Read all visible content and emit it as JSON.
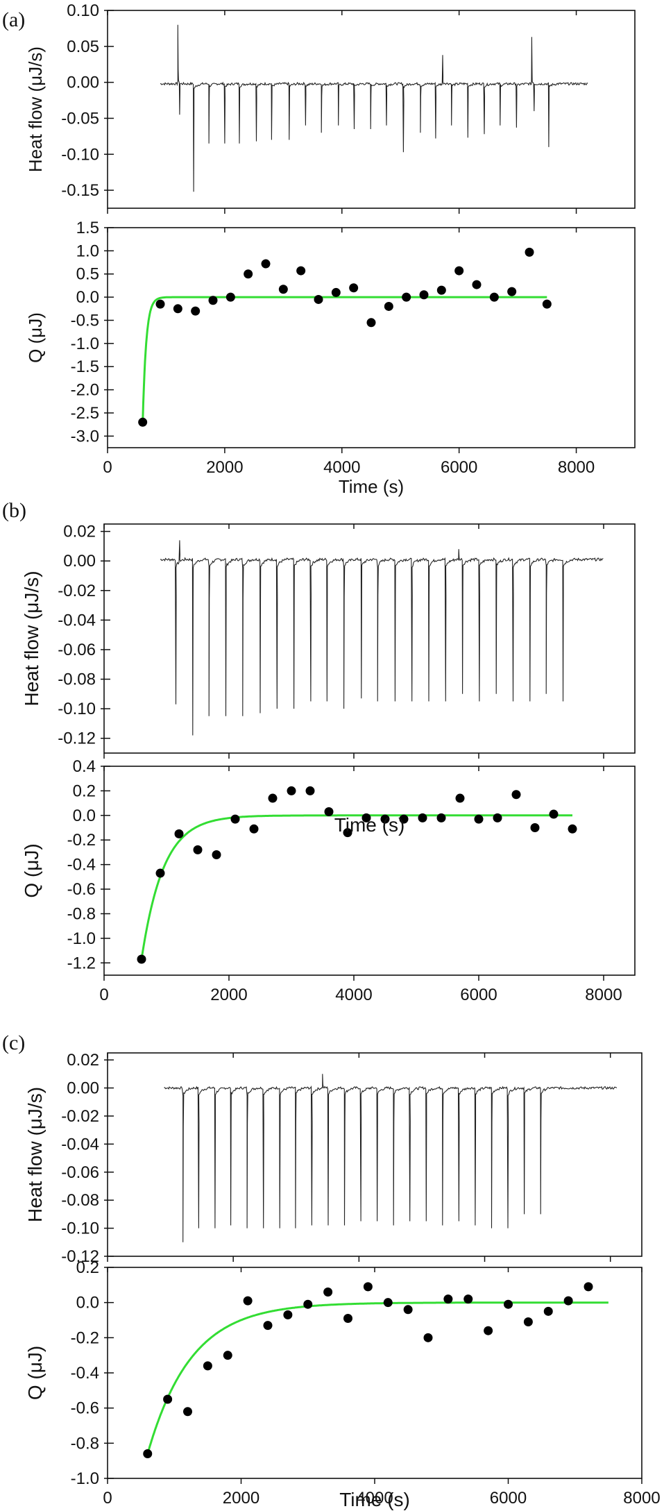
{
  "chart_data": [
    {
      "panel": "(a)",
      "type": "line",
      "ylabel": "Heat flow (μJ/s)",
      "xlim": [
        0,
        9000
      ],
      "ylim": [
        -0.175,
        0.1
      ],
      "yticks": [
        0.1,
        0.05,
        0.0,
        -0.05,
        -0.1,
        -0.15
      ],
      "ytick_labels": [
        "0.10",
        "0.05",
        "0.00",
        "-0.05",
        "-0.10",
        "-0.15"
      ],
      "xticks": [
        0,
        2000,
        4000,
        6000,
        8000
      ],
      "x_tick_labels_shown": false,
      "series": [
        {
          "trace_start": 900,
          "trace_end": 8200,
          "baseline": -0.002,
          "peaks": [
            {
              "x": 1200,
              "y": 0.08
            },
            {
              "x": 1230,
              "y": -0.045
            },
            {
              "x": 1470,
              "y": -0.152
            },
            {
              "x": 1730,
              "y": -0.085
            },
            {
              "x": 2000,
              "y": -0.085
            },
            {
              "x": 2250,
              "y": -0.085
            },
            {
              "x": 2540,
              "y": -0.082
            },
            {
              "x": 2800,
              "y": -0.08
            },
            {
              "x": 3100,
              "y": -0.08
            },
            {
              "x": 3380,
              "y": -0.06
            },
            {
              "x": 3650,
              "y": -0.07
            },
            {
              "x": 3940,
              "y": -0.06
            },
            {
              "x": 4210,
              "y": -0.065
            },
            {
              "x": 4490,
              "y": -0.065
            },
            {
              "x": 4760,
              "y": -0.06
            },
            {
              "x": 5050,
              "y": -0.097
            },
            {
              "x": 5340,
              "y": -0.07
            },
            {
              "x": 5600,
              "y": -0.078
            },
            {
              "x": 5720,
              "y": 0.038
            },
            {
              "x": 5870,
              "y": -0.06
            },
            {
              "x": 6150,
              "y": -0.077
            },
            {
              "x": 6430,
              "y": -0.072
            },
            {
              "x": 6700,
              "y": -0.06
            },
            {
              "x": 6980,
              "y": -0.063
            },
            {
              "x": 7240,
              "y": 0.063
            },
            {
              "x": 7280,
              "y": -0.04
            },
            {
              "x": 7530,
              "y": -0.09
            }
          ]
        }
      ]
    },
    {
      "panel": "(a)",
      "type": "scatter",
      "xlabel": "Time (s)",
      "ylabel": "Q (μJ)",
      "xlim": [
        0,
        9000
      ],
      "ylim": [
        -3.25,
        1.5
      ],
      "yticks": [
        1.5,
        1.0,
        0.5,
        0.0,
        -0.5,
        -1.0,
        -1.5,
        -2.0,
        -2.5,
        -3.0
      ],
      "ytick_labels": [
        "1.5",
        "1.0",
        "0.5",
        "0.0",
        "-0.5",
        "-1.0",
        "-1.5",
        "-2.0",
        "-2.5",
        "-3.0"
      ],
      "xticks": [
        0,
        2000,
        4000,
        6000,
        8000
      ],
      "xtick_labels": [
        "0",
        "2000",
        "4000",
        "6000",
        "8000"
      ],
      "points": {
        "x": [
          600,
          900,
          1200,
          1500,
          1800,
          2100,
          2400,
          2700,
          3000,
          3300,
          3600,
          3900,
          4200,
          4500,
          4800,
          5100,
          5400,
          5700,
          6000,
          6300,
          6600,
          6900,
          7200,
          7500
        ],
        "y": [
          -2.7,
          -0.15,
          -0.25,
          -0.3,
          -0.07,
          0.0,
          0.5,
          0.72,
          0.17,
          0.57,
          -0.05,
          0.1,
          0.2,
          -0.55,
          -0.2,
          0.0,
          0.05,
          0.15,
          0.57,
          0.27,
          0.0,
          0.12,
          0.97,
          -0.15
        ]
      },
      "fit": {
        "type": "exponential",
        "A": -2.7,
        "tau": 60,
        "x0": 600,
        "x_end": 7500,
        "color": "#33dd33"
      }
    },
    {
      "panel": "(b)",
      "type": "line",
      "ylabel": "Heat flow (μJ/s)",
      "xlim": [
        0,
        8500
      ],
      "ylim": [
        -0.13,
        0.025
      ],
      "yticks": [
        0.02,
        0.0,
        -0.02,
        -0.04,
        -0.06,
        -0.08,
        -0.1,
        -0.12
      ],
      "ytick_labels": [
        "0.02",
        "0.00",
        "-0.02",
        "-0.04",
        "-0.06",
        "-0.08",
        "-0.10",
        "-0.12"
      ],
      "xticks": [
        0,
        2000,
        4000,
        6000,
        8000
      ],
      "x_tick_labels_shown": false,
      "series": [
        {
          "trace_start": 900,
          "trace_end": 8000,
          "baseline": 0.001,
          "peaks": [
            {
              "x": 1150,
              "y": -0.097
            },
            {
              "x": 1210,
              "y": 0.014
            },
            {
              "x": 1420,
              "y": -0.118
            },
            {
              "x": 1680,
              "y": -0.105
            },
            {
              "x": 1950,
              "y": -0.105
            },
            {
              "x": 2220,
              "y": -0.105
            },
            {
              "x": 2500,
              "y": -0.103
            },
            {
              "x": 2770,
              "y": -0.1
            },
            {
              "x": 3040,
              "y": -0.1
            },
            {
              "x": 3310,
              "y": -0.095
            },
            {
              "x": 3570,
              "y": -0.095
            },
            {
              "x": 3840,
              "y": -0.1
            },
            {
              "x": 4120,
              "y": -0.093
            },
            {
              "x": 4380,
              "y": -0.095
            },
            {
              "x": 4660,
              "y": -0.095
            },
            {
              "x": 4930,
              "y": -0.095
            },
            {
              "x": 5200,
              "y": -0.095
            },
            {
              "x": 5470,
              "y": -0.095
            },
            {
              "x": 5680,
              "y": 0.008
            },
            {
              "x": 5740,
              "y": -0.09
            },
            {
              "x": 6010,
              "y": -0.095
            },
            {
              "x": 6280,
              "y": -0.09
            },
            {
              "x": 6550,
              "y": -0.095
            },
            {
              "x": 6820,
              "y": -0.095
            },
            {
              "x": 7080,
              "y": -0.09
            },
            {
              "x": 7350,
              "y": -0.095
            }
          ]
        }
      ]
    },
    {
      "panel": "(b)",
      "type": "scatter",
      "xlabel": "Time (s)",
      "ylabel": "Q (μJ)",
      "xlim": [
        0,
        8500
      ],
      "ylim": [
        -1.3,
        0.4
      ],
      "yticks": [
        0.4,
        0.2,
        0.0,
        -0.2,
        -0.4,
        -0.6,
        -0.8,
        -1.0,
        -1.2
      ],
      "ytick_labels": [
        "0.4",
        "0.2",
        "0.0",
        "-0.2",
        "-0.4",
        "-0.6",
        "-0.8",
        "-1.0",
        "-1.2"
      ],
      "xticks": [
        0,
        2000,
        4000,
        6000,
        8000
      ],
      "xtick_labels": [
        "0",
        "2000",
        "4000",
        "6000",
        "8000"
      ],
      "points": {
        "x": [
          600,
          900,
          1200,
          1500,
          1800,
          2100,
          2400,
          2700,
          3000,
          3300,
          3600,
          3900,
          4200,
          4500,
          4800,
          5100,
          5400,
          5700,
          6000,
          6300,
          6600,
          6900,
          7200,
          7500
        ],
        "y": [
          -1.17,
          -0.47,
          -0.15,
          -0.28,
          -0.32,
          -0.03,
          -0.11,
          0.14,
          0.2,
          0.2,
          0.03,
          -0.14,
          -0.02,
          -0.03,
          -0.03,
          -0.02,
          -0.02,
          0.14,
          -0.03,
          -0.02,
          0.17,
          -0.1,
          0.01,
          -0.11
        ]
      },
      "fit": {
        "type": "exponential",
        "A": -1.17,
        "tau": 350,
        "x0": 600,
        "x_end": 7500,
        "color": "#33dd33"
      }
    },
    {
      "panel": "(c)",
      "type": "line",
      "ylabel": "Heat flow (μJ/s)",
      "xlim": [
        0,
        8500
      ],
      "ylim": [
        -0.12,
        0.025
      ],
      "yticks": [
        0.02,
        0.0,
        -0.02,
        -0.04,
        -0.06,
        -0.08,
        -0.1,
        -0.12
      ],
      "ytick_labels": [
        "0.02",
        "0.00",
        "-0.02",
        "-0.04",
        "-0.06",
        "-0.08",
        "-0.10",
        "-0.12"
      ],
      "xticks": [
        0,
        2000,
        4000,
        6000,
        8000
      ],
      "x_tick_labels_shown": false,
      "series": [
        {
          "trace_start": 900,
          "trace_end": 8100,
          "baseline": 0.0,
          "peaks": [
            {
              "x": 880,
              "y": 0.007
            },
            {
              "x": 1200,
              "y": -0.11
            },
            {
              "x": 1450,
              "y": -0.1
            },
            {
              "x": 1710,
              "y": -0.1
            },
            {
              "x": 1960,
              "y": -0.098
            },
            {
              "x": 2220,
              "y": -0.1
            },
            {
              "x": 2480,
              "y": -0.1
            },
            {
              "x": 2740,
              "y": -0.1
            },
            {
              "x": 2990,
              "y": -0.1
            },
            {
              "x": 3250,
              "y": -0.098
            },
            {
              "x": 3420,
              "y": 0.01
            },
            {
              "x": 3510,
              "y": -0.098
            },
            {
              "x": 3770,
              "y": -0.098
            },
            {
              "x": 4030,
              "y": -0.095
            },
            {
              "x": 4290,
              "y": -0.095
            },
            {
              "x": 4550,
              "y": -0.098
            },
            {
              "x": 4810,
              "y": -0.095
            },
            {
              "x": 5070,
              "y": -0.095
            },
            {
              "x": 5330,
              "y": -0.098
            },
            {
              "x": 5590,
              "y": -0.095
            },
            {
              "x": 5850,
              "y": -0.098
            },
            {
              "x": 6110,
              "y": -0.1
            },
            {
              "x": 6370,
              "y": -0.1
            },
            {
              "x": 6630,
              "y": -0.09
            },
            {
              "x": 6890,
              "y": -0.09
            }
          ]
        }
      ]
    },
    {
      "panel": "(c)",
      "type": "scatter",
      "xlabel": "Time (s)",
      "ylabel": "Q (μJ)",
      "xlim": [
        0,
        8000
      ],
      "ylim": [
        -1.0,
        0.2
      ],
      "yticks": [
        0.2,
        0.0,
        -0.2,
        -0.4,
        -0.6,
        -0.8,
        -1.0
      ],
      "ytick_labels": [
        "0.2",
        "0.0",
        "-0.2",
        "-0.4",
        "-0.6",
        "-0.8",
        "-1.0"
      ],
      "xticks": [
        0,
        2000,
        4000,
        6000,
        8000
      ],
      "xtick_labels": [
        "0",
        "2000",
        "4000",
        "6000",
        "8000"
      ],
      "points": {
        "x": [
          600,
          900,
          1200,
          1500,
          1800,
          2100,
          2400,
          2700,
          3000,
          3300,
          3600,
          3900,
          4200,
          4500,
          4800,
          5100,
          5400,
          5700,
          6000,
          6300,
          6600,
          6900,
          7200
        ],
        "y": [
          -0.86,
          -0.55,
          -0.62,
          -0.36,
          -0.3,
          0.01,
          -0.13,
          -0.07,
          -0.01,
          0.06,
          -0.09,
          0.09,
          0.0,
          -0.04,
          -0.2,
          0.02,
          0.02,
          -0.16,
          -0.01,
          -0.11,
          -0.05,
          0.01,
          0.09
        ]
      },
      "fit": {
        "type": "exponential",
        "A": -0.86,
        "tau": 650,
        "x0": 600,
        "x_end": 7500,
        "color": "#33dd33"
      }
    }
  ]
}
